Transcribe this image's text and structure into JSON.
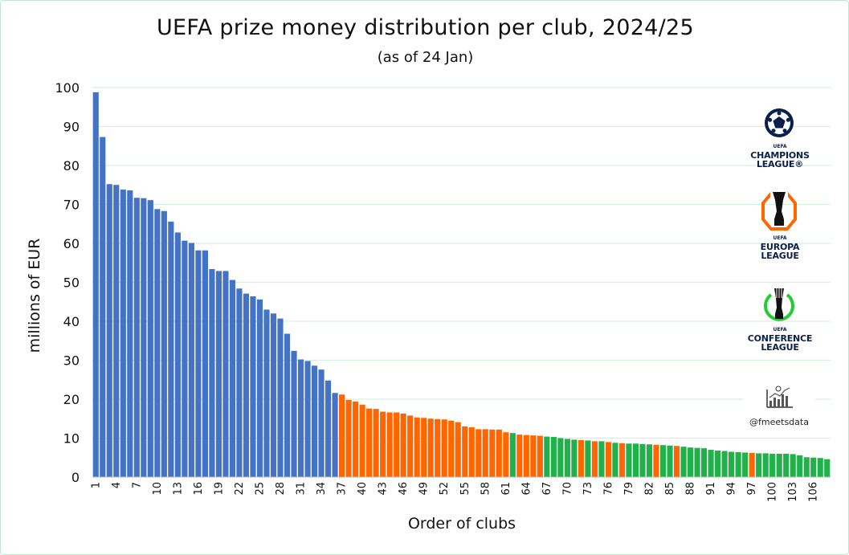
{
  "title": "UEFA prize money distribution per club, 2024/25",
  "subtitle": "(as of 24 Jan)",
  "logos": {
    "ucl": {
      "name": "champions-league-logo",
      "lines": [
        "UEFA",
        "CHAMPIONS",
        "LEAGUE®"
      ]
    },
    "uel": {
      "name": "europa-league-logo",
      "lines": [
        "UEFA",
        "EUROPA",
        "LEAGUE"
      ]
    },
    "uecl": {
      "name": "conference-league-logo",
      "lines": [
        "UEFA",
        "CONFERENCE",
        "LEAGUE"
      ]
    }
  },
  "credit": "@fmeetsdata",
  "colors": {
    "ucl": "#4472c4",
    "uel": "#ff6600",
    "uecl": "#22b04b",
    "grid": "#d8f0e0"
  },
  "chart_data": {
    "type": "bar",
    "xlabel": "Order of clubs",
    "ylabel": "millions of EUR",
    "ylim": [
      0,
      100
    ],
    "yticks": [
      0,
      10,
      20,
      30,
      40,
      50,
      60,
      70,
      80,
      90,
      100
    ],
    "xtick_labels": [
      "1",
      "4",
      "7",
      "10",
      "13",
      "16",
      "19",
      "22",
      "25",
      "28",
      "31",
      "34",
      "37",
      "40",
      "43",
      "46",
      "49",
      "52",
      "55",
      "58",
      "61",
      "64",
      "67",
      "70",
      "73",
      "76",
      "79",
      "82",
      "85",
      "88",
      "91",
      "94",
      "97",
      "100",
      "103",
      "106"
    ],
    "grid": "horizontal",
    "categories": [
      1,
      2,
      3,
      4,
      5,
      6,
      7,
      8,
      9,
      10,
      11,
      12,
      13,
      14,
      15,
      16,
      17,
      18,
      19,
      20,
      21,
      22,
      23,
      24,
      25,
      26,
      27,
      28,
      29,
      30,
      31,
      32,
      33,
      34,
      35,
      36,
      37,
      38,
      39,
      40,
      41,
      42,
      43,
      44,
      45,
      46,
      47,
      48,
      49,
      50,
      51,
      52,
      53,
      54,
      55,
      56,
      57,
      58,
      59,
      60,
      61,
      62,
      63,
      64,
      65,
      66,
      67,
      68,
      69,
      70,
      71,
      72,
      73,
      74,
      75,
      76,
      77,
      78,
      79,
      80,
      81,
      82,
      83,
      84,
      85,
      86,
      87,
      88,
      89,
      90,
      91,
      92,
      93,
      94,
      95,
      96,
      97,
      98,
      99,
      100,
      101,
      102,
      103,
      104,
      105,
      106,
      107,
      108
    ],
    "values": [
      98.8,
      87.3,
      75.2,
      75.0,
      73.8,
      73.6,
      71.7,
      71.6,
      71.1,
      68.8,
      68.3,
      65.6,
      62.8,
      60.7,
      60.1,
      58.2,
      58.2,
      53.4,
      52.9,
      52.9,
      50.6,
      48.4,
      47.1,
      46.4,
      45.6,
      43.0,
      42.0,
      40.7,
      36.8,
      32.4,
      30.2,
      29.8,
      28.6,
      27.6,
      24.8,
      21.6,
      21.2,
      19.8,
      19.4,
      18.6,
      17.6,
      17.5,
      16.8,
      16.6,
      16.6,
      16.3,
      15.8,
      15.3,
      15.2,
      15.0,
      14.9,
      14.8,
      14.5,
      14.1,
      13.0,
      12.8,
      12.3,
      12.3,
      12.2,
      12.2,
      11.5,
      11.3,
      10.9,
      10.8,
      10.7,
      10.6,
      10.4,
      10.3,
      10.0,
      9.8,
      9.6,
      9.5,
      9.4,
      9.2,
      9.2,
      9.0,
      8.8,
      8.7,
      8.6,
      8.6,
      8.5,
      8.4,
      8.3,
      8.2,
      8.1,
      8.0,
      7.8,
      7.6,
      7.5,
      7.4,
      7.0,
      6.8,
      6.7,
      6.5,
      6.4,
      6.3,
      6.2,
      6.1,
      6.1,
      6.0,
      6.0,
      6.0,
      5.9,
      5.6,
      5.1,
      5.0,
      4.9,
      4.6
    ],
    "competition": [
      "UCL",
      "UCL",
      "UCL",
      "UCL",
      "UCL",
      "UCL",
      "UCL",
      "UCL",
      "UCL",
      "UCL",
      "UCL",
      "UCL",
      "UCL",
      "UCL",
      "UCL",
      "UCL",
      "UCL",
      "UCL",
      "UCL",
      "UCL",
      "UCL",
      "UCL",
      "UCL",
      "UCL",
      "UCL",
      "UCL",
      "UCL",
      "UCL",
      "UCL",
      "UCL",
      "UCL",
      "UCL",
      "UCL",
      "UCL",
      "UCL",
      "UCL",
      "UEL",
      "UEL",
      "UEL",
      "UEL",
      "UEL",
      "UEL",
      "UEL",
      "UEL",
      "UEL",
      "UEL",
      "UEL",
      "UEL",
      "UEL",
      "UEL",
      "UEL",
      "UEL",
      "UEL",
      "UEL",
      "UEL",
      "UEL",
      "UEL",
      "UEL",
      "UEL",
      "UEL",
      "UEL",
      "UECL",
      "UEL",
      "UEL",
      "UEL",
      "UEL",
      "UECL",
      "UECL",
      "UECL",
      "UECL",
      "UECL",
      "UEL",
      "UECL",
      "UEL",
      "UECL",
      "UEL",
      "UECL",
      "UEL",
      "UECL",
      "UECL",
      "UECL",
      "UECL",
      "UEL",
      "UECL",
      "UECL",
      "UEL",
      "UECL",
      "UECL",
      "UECL",
      "UECL",
      "UECL",
      "UECL",
      "UECL",
      "UECL",
      "UECL",
      "UECL",
      "UEL",
      "UECL",
      "UECL",
      "UECL",
      "UECL",
      "UECL",
      "UECL",
      "UECL",
      "UECL",
      "UECL",
      "UECL",
      "UECL"
    ]
  }
}
